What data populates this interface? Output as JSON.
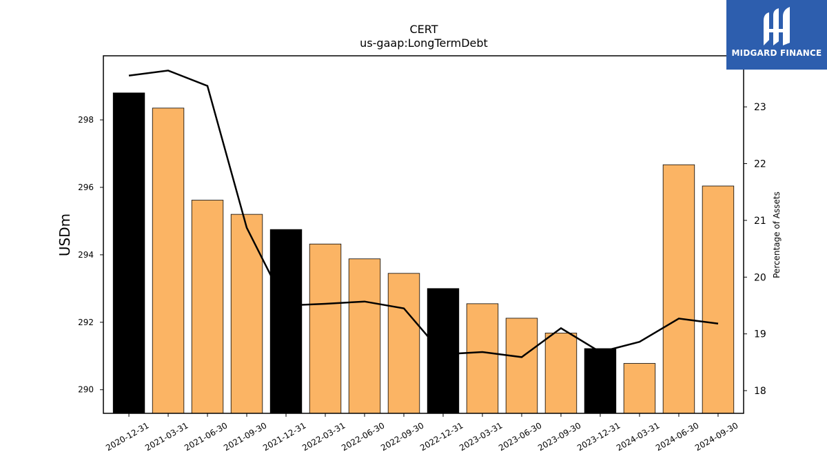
{
  "chart_data": {
    "type": "bar",
    "title": "CERT",
    "subtitle": "us-gaap:LongTermDebt",
    "ylabel": "USDm",
    "y2label": "Percentage of Assets",
    "categories": [
      "2020-12-31",
      "2021-03-31",
      "2021-06-30",
      "2021-09-30",
      "2021-12-31",
      "2022-03-31",
      "2022-06-30",
      "2022-09-30",
      "2022-12-31",
      "2023-03-31",
      "2023-06-30",
      "2023-09-30",
      "2023-12-31",
      "2024-03-31",
      "2024-06-30",
      "2024-09-30"
    ],
    "series": [
      {
        "type": "bar",
        "values": [
          298.8,
          298.35,
          295.62,
          295.2,
          294.75,
          294.32,
          293.88,
          293.45,
          293.0,
          292.55,
          292.12,
          291.68,
          291.22,
          290.78,
          296.67,
          296.04
        ]
      },
      {
        "type": "line",
        "axis": "right",
        "values": [
          23.55,
          23.64,
          23.37,
          20.87,
          19.5,
          19.53,
          19.57,
          19.45,
          18.64,
          18.68,
          18.59,
          19.1,
          18.68,
          18.86,
          19.27,
          19.18
        ]
      }
    ],
    "bar_colors": {
      "year_end": "#000000",
      "quarter": "#fbb464"
    },
    "year_end_indices": [
      0,
      4,
      8,
      12
    ],
    "line_color": "#000000",
    "ylim": [
      289.3,
      299.9
    ],
    "y2lim": [
      17.6,
      23.9
    ],
    "yticks": [
      290,
      292,
      294,
      296,
      298
    ],
    "y2ticks": [
      18,
      19,
      20,
      21,
      22,
      23
    ],
    "grid": false,
    "legend": "none"
  },
  "logo": {
    "text": "MIDGARD FINANCE",
    "background": "#2d5eae"
  }
}
